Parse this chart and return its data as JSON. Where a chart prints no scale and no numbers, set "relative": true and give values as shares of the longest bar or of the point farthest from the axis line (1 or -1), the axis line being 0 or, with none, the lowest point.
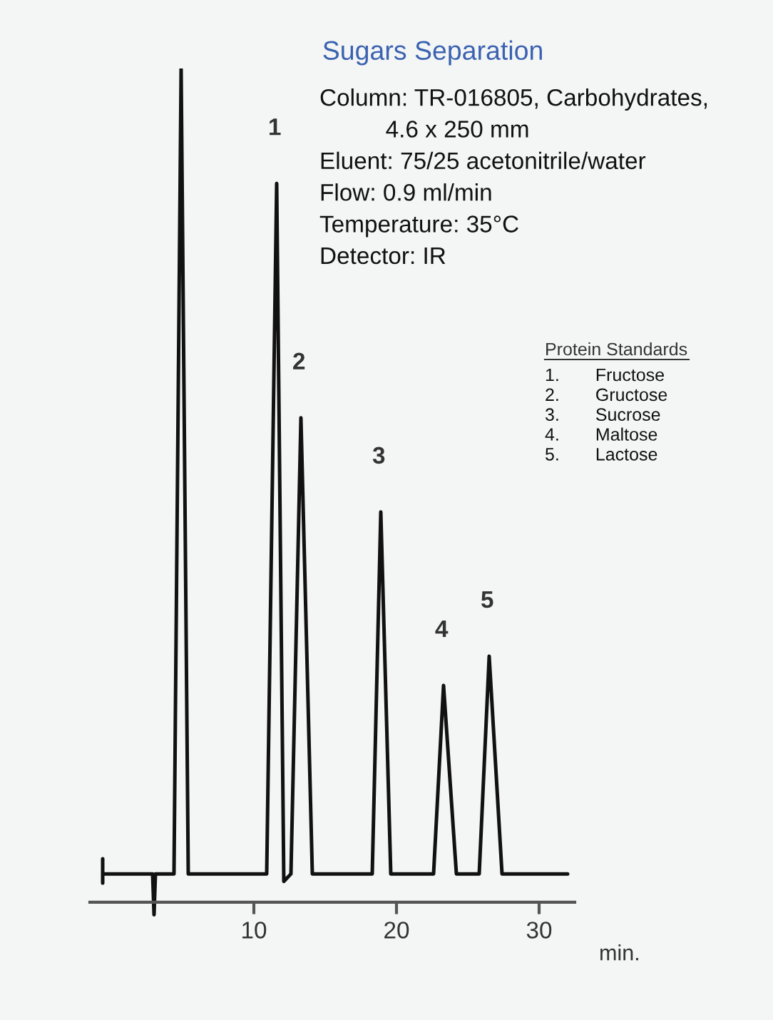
{
  "chart_data": {
    "type": "line",
    "title": "Sugars Separation",
    "relative": true,
    "color": "#111111",
    "x": [
      -0.6,
      -0.6,
      -0.6,
      2.9,
      3.0,
      3.1,
      4.4,
      4.9,
      5.4,
      10.9,
      11.6,
      12.1,
      12.6,
      13.3,
      14.1,
      18.3,
      18.9,
      19.6,
      22.6,
      23.3,
      24.2,
      25.8,
      26.5,
      27.4,
      32.0
    ],
    "values": [
      0.052,
      0.023,
      0.034,
      0.034,
      -0.015,
      0.034,
      0.034,
      1,
      0.034,
      0.034,
      0.862,
      0.025,
      0.034,
      0.581,
      0.034,
      0.034,
      0.468,
      0.034,
      0.034,
      0.26,
      0.034,
      0.034,
      0.295,
      0.034,
      0.034
    ],
    "xlim": [
      -1.5,
      32.5
    ],
    "xticks": [
      10,
      20,
      30
    ],
    "xlabel": "min.",
    "annotations": [
      {
        "text": "1",
        "x": 11.6,
        "y": 0.862
      },
      {
        "text": "2",
        "x": 13.3,
        "y": 0.581
      },
      {
        "text": "3",
        "x": 18.9,
        "y": 0.468
      },
      {
        "text": "4",
        "x": 23.3,
        "y": 0.26
      },
      {
        "text": "5",
        "x": 26.5,
        "y": 0.295
      },
      "Column: TR-016805, Carbohydrates,\n          4.6 x 250 mm\nEluent: 75/25 acetonitrile/water\nFlow: 0.9 ml/min\nTemperature: 35°C\nDetector: IR",
      "Protein Standards",
      "1.  Fructose\n2.  Gructose\n3.  Sucrose\n4.  Maltose\n5.  Lactose"
    ]
  }
}
